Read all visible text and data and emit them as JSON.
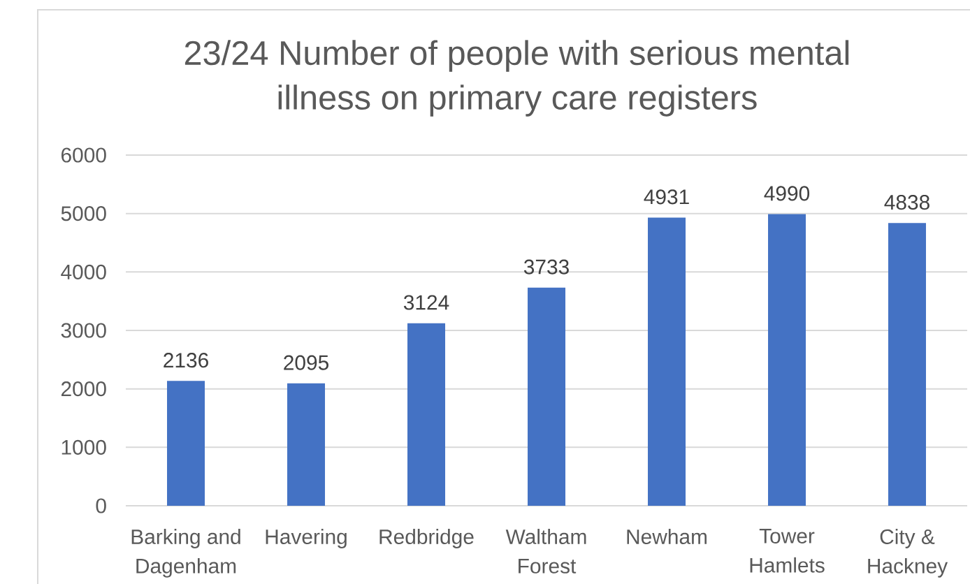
{
  "chart_data": {
    "type": "bar",
    "title": "23/24 Number of people with serious mental illness on primary care registers",
    "categories": [
      "Barking and Dagenham",
      "Havering",
      "Redbridge",
      "Waltham Forest",
      "Newham",
      "Tower Hamlets",
      "City & Hackney"
    ],
    "values": [
      2136,
      2095,
      3124,
      3733,
      4931,
      4990,
      4838
    ],
    "color": "#4472c4",
    "ylim": [
      0,
      6000
    ],
    "yticks": [
      0,
      1000,
      2000,
      3000,
      4000,
      5000,
      6000
    ],
    "grid": "y",
    "data_labels": true
  }
}
